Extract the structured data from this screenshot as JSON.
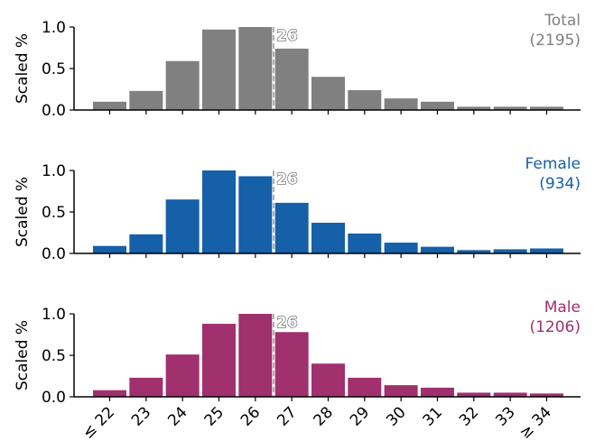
{
  "chart_data": {
    "type": "bar",
    "categories": [
      "≤ 22",
      "23",
      "24",
      "25",
      "26",
      "27",
      "28",
      "29",
      "30",
      "31",
      "32",
      "33",
      "≥ 34"
    ],
    "ylabel": "Scaled %",
    "ylim": [
      0,
      1.0
    ],
    "yticks": [
      "0.0",
      "0.5",
      "1.0"
    ],
    "grid": false,
    "panels": [
      {
        "name": "Total",
        "count_label": "(2195)",
        "color": "#808080",
        "median": 26,
        "median_label": "26",
        "values": [
          0.1,
          0.23,
          0.59,
          0.97,
          1.0,
          0.74,
          0.4,
          0.24,
          0.14,
          0.1,
          0.04,
          0.04,
          0.04
        ]
      },
      {
        "name": "Female",
        "count_label": "(934)",
        "color": "#1560a8",
        "median": 26,
        "median_label": "26",
        "values": [
          0.09,
          0.23,
          0.65,
          1.0,
          0.93,
          0.61,
          0.37,
          0.24,
          0.13,
          0.08,
          0.04,
          0.05,
          0.06
        ]
      },
      {
        "name": "Male",
        "count_label": "(1206)",
        "color": "#a0306e",
        "median": 26,
        "median_label": "26",
        "values": [
          0.08,
          0.23,
          0.51,
          0.88,
          1.0,
          0.78,
          0.4,
          0.23,
          0.14,
          0.11,
          0.05,
          0.05,
          0.04
        ]
      }
    ]
  }
}
